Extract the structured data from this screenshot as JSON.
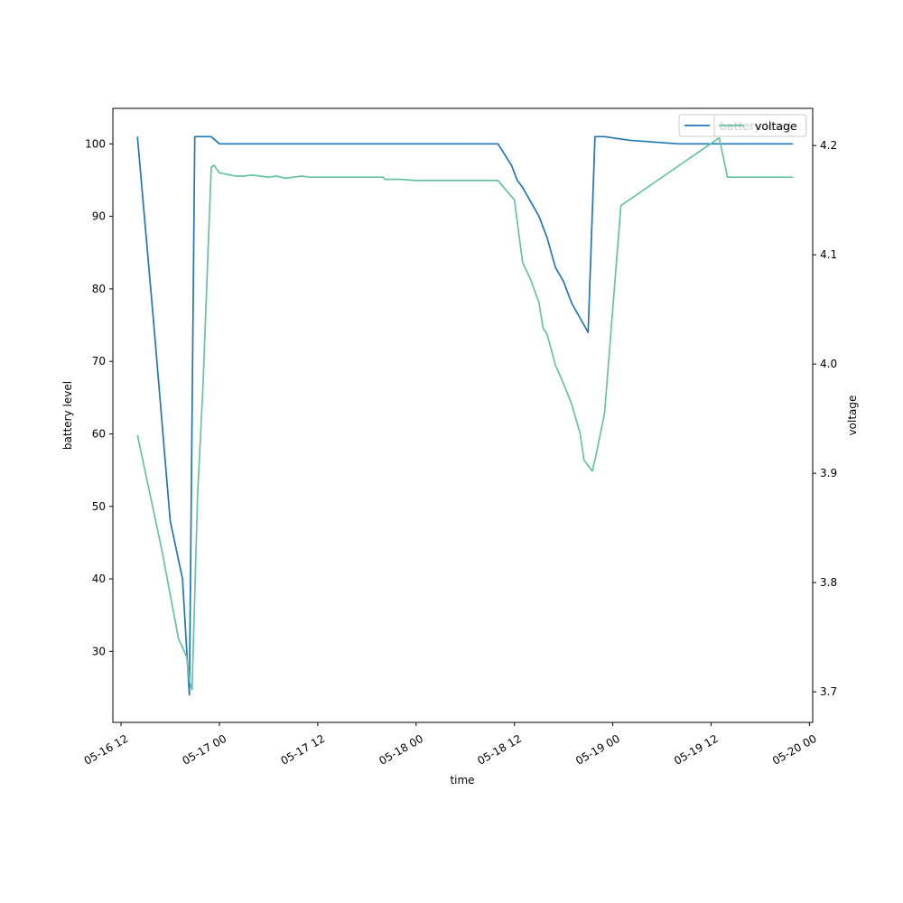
{
  "chart_data": {
    "type": "line",
    "xlabel": "time",
    "ylabel": "battery level",
    "y2label": "voltage",
    "x_ticks": [
      "05-16 12",
      "05-17 00",
      "05-17 12",
      "05-18 00",
      "05-18 12",
      "05-19 00",
      "05-19 12",
      "05-20 00"
    ],
    "x_tick_times": [
      "2023-05-16T12:00",
      "2023-05-17T00:00",
      "2023-05-17T12:00",
      "2023-05-18T00:00",
      "2023-05-18T12:00",
      "2023-05-19T00:00",
      "2023-05-19T12:00",
      "2023-05-20T00:00"
    ],
    "xlim": [
      "2023-05-16T11:00",
      "2023-05-20T00:24"
    ],
    "y_ticks": [
      30,
      40,
      50,
      60,
      70,
      80,
      90,
      100
    ],
    "ylim": [
      20.2,
      104.9
    ],
    "y2_ticks": [
      "3.7",
      "3.8",
      "3.9",
      "4.0",
      "4.1",
      "4.2"
    ],
    "y2lim": [
      3.672,
      4.234
    ],
    "grid": false,
    "legend_placement": "top-right",
    "legend_entries": [
      "battery level",
      "voltage"
    ],
    "colors": {
      "battery": "#1f77b4",
      "voltage": "#66c2a5"
    },
    "series": [
      {
        "name": "battery level",
        "axis": "left",
        "color": "#1f77b4",
        "x": [
          "2023-05-16T14:00",
          "2023-05-16T16:00",
          "2023-05-16T18:00",
          "2023-05-16T19:30",
          "2023-05-16T20:20",
          "2023-05-16T21:00",
          "2023-05-16T21:40",
          "2023-05-16T23:00",
          "2023-05-17T00:00",
          "2023-05-18T06:00",
          "2023-05-18T10:00",
          "2023-05-18T11:40",
          "2023-05-18T12:20",
          "2023-05-18T13:00",
          "2023-05-18T14:00",
          "2023-05-18T15:00",
          "2023-05-18T16:00",
          "2023-05-18T17:00",
          "2023-05-18T18:00",
          "2023-05-18T19:00",
          "2023-05-18T20:00",
          "2023-05-18T21:00",
          "2023-05-18T21:50",
          "2023-05-18T22:20",
          "2023-05-18T23:00",
          "2023-05-19T02:00",
          "2023-05-19T08:00",
          "2023-05-19T14:00",
          "2023-05-19T18:00",
          "2023-05-19T22:00"
        ],
        "y": [
          101,
          75,
          48,
          40,
          24,
          101,
          101,
          101,
          100,
          100,
          100,
          97,
          95,
          94,
          92,
          90,
          87,
          83,
          81,
          78,
          76,
          74,
          101,
          101,
          101,
          100.5,
          100,
          100,
          100,
          100
        ]
      },
      {
        "name": "voltage",
        "axis": "right",
        "color": "#66c2a5",
        "x": [
          "2023-05-16T14:00",
          "2023-05-16T17:00",
          "2023-05-16T19:00",
          "2023-05-16T20:00",
          "2023-05-16T20:20",
          "2023-05-16T20:40",
          "2023-05-16T21:20",
          "2023-05-16T22:00",
          "2023-05-16T23:00",
          "2023-05-16T23:20",
          "2023-05-17T00:00",
          "2023-05-17T02:00",
          "2023-05-17T03:00",
          "2023-05-17T04:00",
          "2023-05-17T05:00",
          "2023-05-17T06:00",
          "2023-05-17T07:00",
          "2023-05-17T08:00",
          "2023-05-17T09:00",
          "2023-05-17T10:00",
          "2023-05-17T11:00",
          "2023-05-17T12:00",
          "2023-05-17T16:00",
          "2023-05-17T20:00",
          "2023-05-17T20:10",
          "2023-05-17T22:00",
          "2023-05-18T00:00",
          "2023-05-18T01:00",
          "2023-05-18T02:00",
          "2023-05-18T03:00",
          "2023-05-18T04:00",
          "2023-05-18T05:00",
          "2023-05-18T06:00",
          "2023-05-18T07:00",
          "2023-05-18T08:00",
          "2023-05-18T09:00",
          "2023-05-18T10:00",
          "2023-05-18T12:00",
          "2023-05-18T13:00",
          "2023-05-18T14:00",
          "2023-05-18T15:00",
          "2023-05-18T15:30",
          "2023-05-18T16:00",
          "2023-05-18T17:00",
          "2023-05-18T18:00",
          "2023-05-18T19:00",
          "2023-05-18T20:00",
          "2023-05-18T20:30",
          "2023-05-18T21:30",
          "2023-05-18T22:00",
          "2023-05-18T23:00",
          "2023-05-19T01:00",
          "2023-05-19T13:00",
          "2023-05-19T14:00",
          "2023-05-19T18:00",
          "2023-05-19T19:00",
          "2023-05-19T19:10",
          "2023-05-19T20:00",
          "2023-05-19T21:00",
          "2023-05-19T22:00"
        ],
        "y": [
          3.935,
          3.829,
          3.749,
          3.732,
          3.71,
          3.702,
          3.88,
          3.98,
          4.18,
          4.182,
          4.175,
          4.172,
          4.172,
          4.173,
          4.172,
          4.171,
          4.172,
          4.17,
          4.171,
          4.172,
          4.171,
          4.171,
          4.171,
          4.171,
          4.169,
          4.169,
          4.168,
          4.168,
          4.168,
          4.168,
          4.168,
          4.168,
          4.168,
          4.168,
          4.168,
          4.168,
          4.168,
          4.15,
          4.093,
          4.077,
          4.056,
          4.033,
          4.027,
          3.999,
          3.982,
          3.963,
          3.937,
          3.912,
          3.902,
          3.918,
          3.955,
          4.145,
          4.207,
          4.171,
          4.171,
          4.171,
          4.171,
          4.171,
          4.171,
          4.171
        ]
      }
    ]
  }
}
